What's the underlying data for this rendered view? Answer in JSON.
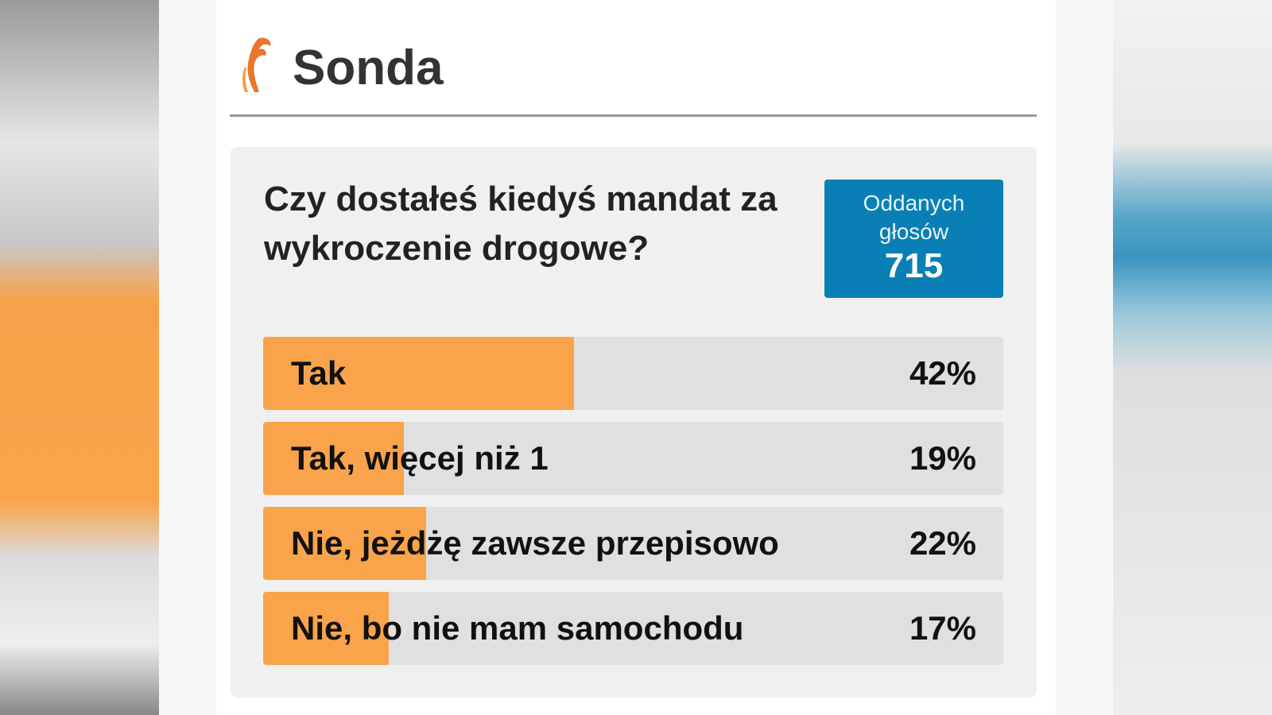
{
  "header": {
    "title": "Sonda"
  },
  "poll": {
    "question": "Czy dostałeś kiedyś mandat za wykroczenie drogowe?",
    "votes_label": "Oddanych głosów",
    "votes": 715,
    "options": [
      {
        "label": "Tak",
        "value": 42,
        "value_label": "42%"
      },
      {
        "label": "Tak, więcej niż 1",
        "value": 19,
        "value_label": "19%"
      },
      {
        "label": "Nie, jeżdżę zawsze przepisowo",
        "value": 22,
        "value_label": "22%"
      },
      {
        "label": "Nie, bo nie mam samochodu",
        "value": 17,
        "value_label": "17%"
      }
    ]
  }
}
